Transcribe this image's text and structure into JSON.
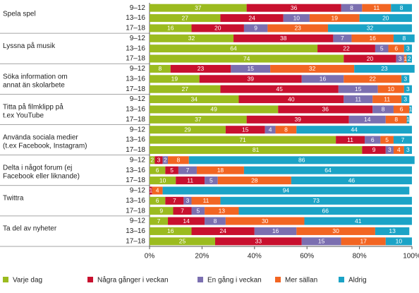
{
  "chart_data": {
    "type": "stacked-bar-horizontal",
    "groups": [
      "Spela spel",
      "Lyssna på musik",
      "Söka information om\nannat än skolarbete",
      "Titta på filmklipp på\nt.ex YouTube",
      "Använda sociala medier\n(t.ex Facebook, Instagram)",
      "Delta i något forum (ej\nFacebook eller liknande)",
      "Twittra",
      "Ta del av nyheter"
    ],
    "categories": [
      "9–12",
      "13–16",
      "17–18",
      "9–12",
      "13–16",
      "17–18",
      "9–12",
      "13–16",
      "17–18",
      "9–12",
      "13–16",
      "17–18",
      "9–12",
      "13–16",
      "17–18",
      "9–12",
      "13–16",
      "17–18",
      "9–12",
      "13–16",
      "17–18",
      "9–12",
      "13–16",
      "17–18"
    ],
    "series": [
      {
        "name": "Varje dag",
        "color": "#9bbb1f",
        "values": [
          37,
          27,
          16,
          32,
          64,
          74,
          8,
          19,
          27,
          34,
          49,
          37,
          29,
          71,
          81,
          2,
          6,
          10,
          null,
          6,
          9,
          7,
          16,
          25
        ]
      },
      {
        "name": "Några gånger i veckan",
        "color": "#c8102e",
        "values": [
          36,
          24,
          20,
          38,
          22,
          20,
          23,
          39,
          45,
          40,
          36,
          39,
          15,
          11,
          9,
          3,
          5,
          11,
          1,
          7,
          7,
          14,
          24,
          33
        ]
      },
      {
        "name": "En gång i veckan",
        "color": "#7b6fb0",
        "values": [
          8,
          10,
          9,
          7,
          5,
          3,
          15,
          16,
          15,
          11,
          8,
          14,
          4,
          6,
          3,
          2,
          7,
          5,
          null,
          3,
          5,
          8,
          16,
          15
        ]
      },
      {
        "name": "Mer sällan",
        "color": "#f26522",
        "values": [
          11,
          19,
          23,
          16,
          6,
          1,
          32,
          22,
          10,
          11,
          6,
          8,
          8,
          5,
          4,
          8,
          18,
          28,
          4,
          11,
          13,
          30,
          30,
          17
        ]
      },
      {
        "name": "Aldrig",
        "color": "#1ba3c6",
        "values": [
          8,
          20,
          32,
          8,
          3,
          2,
          23,
          3,
          3,
          3,
          1,
          1,
          44,
          7,
          3,
          86,
          64,
          46,
          94,
          73,
          66,
          41,
          13,
          10
        ]
      }
    ],
    "xlim": [
      0,
      100
    ],
    "xticks": [
      {
        "value": 0,
        "label": "0%"
      },
      {
        "value": 20,
        "label": "20%"
      },
      {
        "value": 40,
        "label": "40%"
      },
      {
        "value": 60,
        "label": "60%"
      },
      {
        "value": 80,
        "label": "80%"
      },
      {
        "value": 100,
        "label": "100%"
      }
    ],
    "legend": "bottom"
  }
}
